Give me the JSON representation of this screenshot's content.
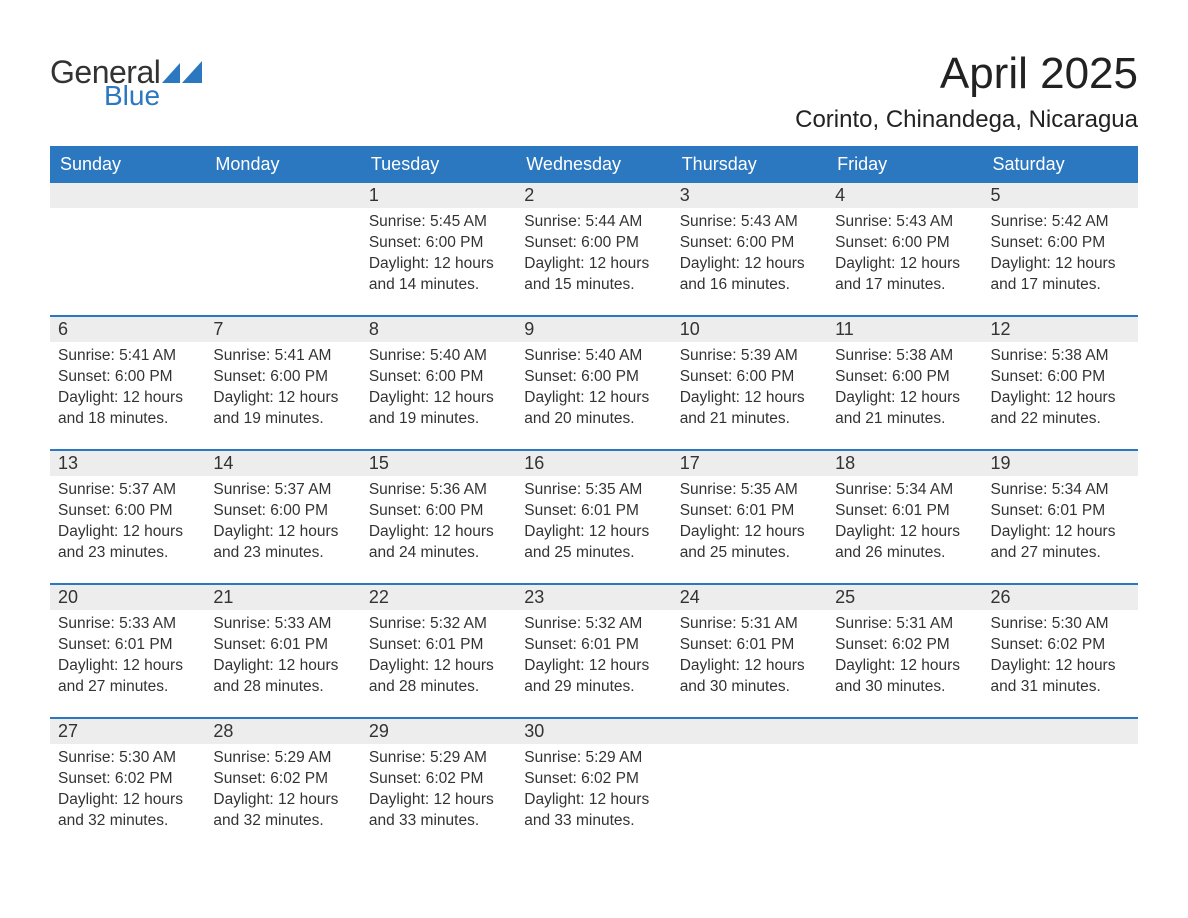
{
  "brand": {
    "general": "General",
    "blue": "Blue",
    "flag_color": "#2b77c0"
  },
  "title": "April 2025",
  "location": "Corinto, Chinandega, Nicaragua",
  "styling": {
    "page_bg": "#ffffff",
    "header_blue": "#2b77c0",
    "row_bg": "#ededed",
    "text_color": "#333333",
    "title_fontsize": 44,
    "location_fontsize": 24,
    "dow_fontsize": 18,
    "daynum_fontsize": 18,
    "body_fontsize": 15.5,
    "week_border": "2px solid #2b77c0",
    "columns": 7
  },
  "days_of_week": [
    "Sunday",
    "Monday",
    "Tuesday",
    "Wednesday",
    "Thursday",
    "Friday",
    "Saturday"
  ],
  "labels": {
    "sunrise": "Sunrise:",
    "sunset": "Sunset:",
    "daylight": "Daylight:"
  },
  "weeks": [
    [
      null,
      null,
      {
        "n": "1",
        "sunrise": "5:45 AM",
        "sunset": "6:00 PM",
        "daylight": "12 hours and 14 minutes."
      },
      {
        "n": "2",
        "sunrise": "5:44 AM",
        "sunset": "6:00 PM",
        "daylight": "12 hours and 15 minutes."
      },
      {
        "n": "3",
        "sunrise": "5:43 AM",
        "sunset": "6:00 PM",
        "daylight": "12 hours and 16 minutes."
      },
      {
        "n": "4",
        "sunrise": "5:43 AM",
        "sunset": "6:00 PM",
        "daylight": "12 hours and 17 minutes."
      },
      {
        "n": "5",
        "sunrise": "5:42 AM",
        "sunset": "6:00 PM",
        "daylight": "12 hours and 17 minutes."
      }
    ],
    [
      {
        "n": "6",
        "sunrise": "5:41 AM",
        "sunset": "6:00 PM",
        "daylight": "12 hours and 18 minutes."
      },
      {
        "n": "7",
        "sunrise": "5:41 AM",
        "sunset": "6:00 PM",
        "daylight": "12 hours and 19 minutes."
      },
      {
        "n": "8",
        "sunrise": "5:40 AM",
        "sunset": "6:00 PM",
        "daylight": "12 hours and 19 minutes."
      },
      {
        "n": "9",
        "sunrise": "5:40 AM",
        "sunset": "6:00 PM",
        "daylight": "12 hours and 20 minutes."
      },
      {
        "n": "10",
        "sunrise": "5:39 AM",
        "sunset": "6:00 PM",
        "daylight": "12 hours and 21 minutes."
      },
      {
        "n": "11",
        "sunrise": "5:38 AM",
        "sunset": "6:00 PM",
        "daylight": "12 hours and 21 minutes."
      },
      {
        "n": "12",
        "sunrise": "5:38 AM",
        "sunset": "6:00 PM",
        "daylight": "12 hours and 22 minutes."
      }
    ],
    [
      {
        "n": "13",
        "sunrise": "5:37 AM",
        "sunset": "6:00 PM",
        "daylight": "12 hours and 23 minutes."
      },
      {
        "n": "14",
        "sunrise": "5:37 AM",
        "sunset": "6:00 PM",
        "daylight": "12 hours and 23 minutes."
      },
      {
        "n": "15",
        "sunrise": "5:36 AM",
        "sunset": "6:00 PM",
        "daylight": "12 hours and 24 minutes."
      },
      {
        "n": "16",
        "sunrise": "5:35 AM",
        "sunset": "6:01 PM",
        "daylight": "12 hours and 25 minutes."
      },
      {
        "n": "17",
        "sunrise": "5:35 AM",
        "sunset": "6:01 PM",
        "daylight": "12 hours and 25 minutes."
      },
      {
        "n": "18",
        "sunrise": "5:34 AM",
        "sunset": "6:01 PM",
        "daylight": "12 hours and 26 minutes."
      },
      {
        "n": "19",
        "sunrise": "5:34 AM",
        "sunset": "6:01 PM",
        "daylight": "12 hours and 27 minutes."
      }
    ],
    [
      {
        "n": "20",
        "sunrise": "5:33 AM",
        "sunset": "6:01 PM",
        "daylight": "12 hours and 27 minutes."
      },
      {
        "n": "21",
        "sunrise": "5:33 AM",
        "sunset": "6:01 PM",
        "daylight": "12 hours and 28 minutes."
      },
      {
        "n": "22",
        "sunrise": "5:32 AM",
        "sunset": "6:01 PM",
        "daylight": "12 hours and 28 minutes."
      },
      {
        "n": "23",
        "sunrise": "5:32 AM",
        "sunset": "6:01 PM",
        "daylight": "12 hours and 29 minutes."
      },
      {
        "n": "24",
        "sunrise": "5:31 AM",
        "sunset": "6:01 PM",
        "daylight": "12 hours and 30 minutes."
      },
      {
        "n": "25",
        "sunrise": "5:31 AM",
        "sunset": "6:02 PM",
        "daylight": "12 hours and 30 minutes."
      },
      {
        "n": "26",
        "sunrise": "5:30 AM",
        "sunset": "6:02 PM",
        "daylight": "12 hours and 31 minutes."
      }
    ],
    [
      {
        "n": "27",
        "sunrise": "5:30 AM",
        "sunset": "6:02 PM",
        "daylight": "12 hours and 32 minutes."
      },
      {
        "n": "28",
        "sunrise": "5:29 AM",
        "sunset": "6:02 PM",
        "daylight": "12 hours and 32 minutes."
      },
      {
        "n": "29",
        "sunrise": "5:29 AM",
        "sunset": "6:02 PM",
        "daylight": "12 hours and 33 minutes."
      },
      {
        "n": "30",
        "sunrise": "5:29 AM",
        "sunset": "6:02 PM",
        "daylight": "12 hours and 33 minutes."
      },
      null,
      null,
      null
    ]
  ]
}
